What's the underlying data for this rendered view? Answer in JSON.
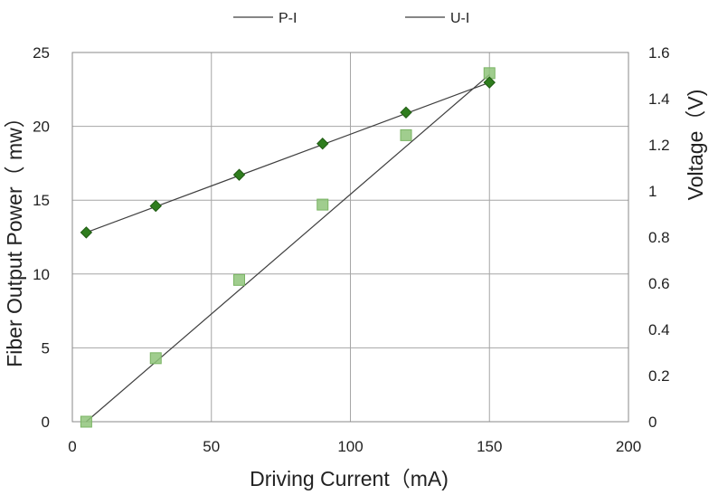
{
  "chart_data": {
    "type": "scatter",
    "xlabel": "Driving Current（mA)",
    "ylabel": "Fiber Output Power（ mw）",
    "y2label": "Voltage（V)",
    "xlim": [
      0,
      200
    ],
    "ylim": [
      0,
      25
    ],
    "y2lim": [
      0,
      1.6
    ],
    "x_ticks": [
      "0",
      "50",
      "100",
      "150",
      "200"
    ],
    "y_ticks": [
      "0",
      "5",
      "10",
      "15",
      "20",
      "25"
    ],
    "y2_ticks": [
      "0",
      "0.2",
      "0.4",
      "0.6",
      "0.8",
      "1",
      "1.2",
      "1.4",
      "1.6"
    ],
    "grid": true,
    "legend_position": "top",
    "series": [
      {
        "name": "P-I",
        "axis": "left",
        "marker": "square",
        "color": "#8fc47a",
        "trend_line": [
          [
            5,
            0
          ],
          [
            150,
            23.5
          ]
        ],
        "x": [
          5,
          30,
          60,
          90,
          120,
          150
        ],
        "y": [
          0.0,
          4.3,
          9.6,
          14.7,
          19.4,
          23.6
        ]
      },
      {
        "name": "U-I",
        "axis": "right",
        "marker": "diamond",
        "color": "#2f7d1e",
        "trend_line": [
          [
            5,
            0.82
          ],
          [
            150,
            1.47
          ]
        ],
        "x": [
          5,
          30,
          60,
          90,
          120,
          150
        ],
        "y": [
          0.82,
          0.935,
          1.07,
          1.205,
          1.34,
          1.47
        ]
      }
    ]
  }
}
